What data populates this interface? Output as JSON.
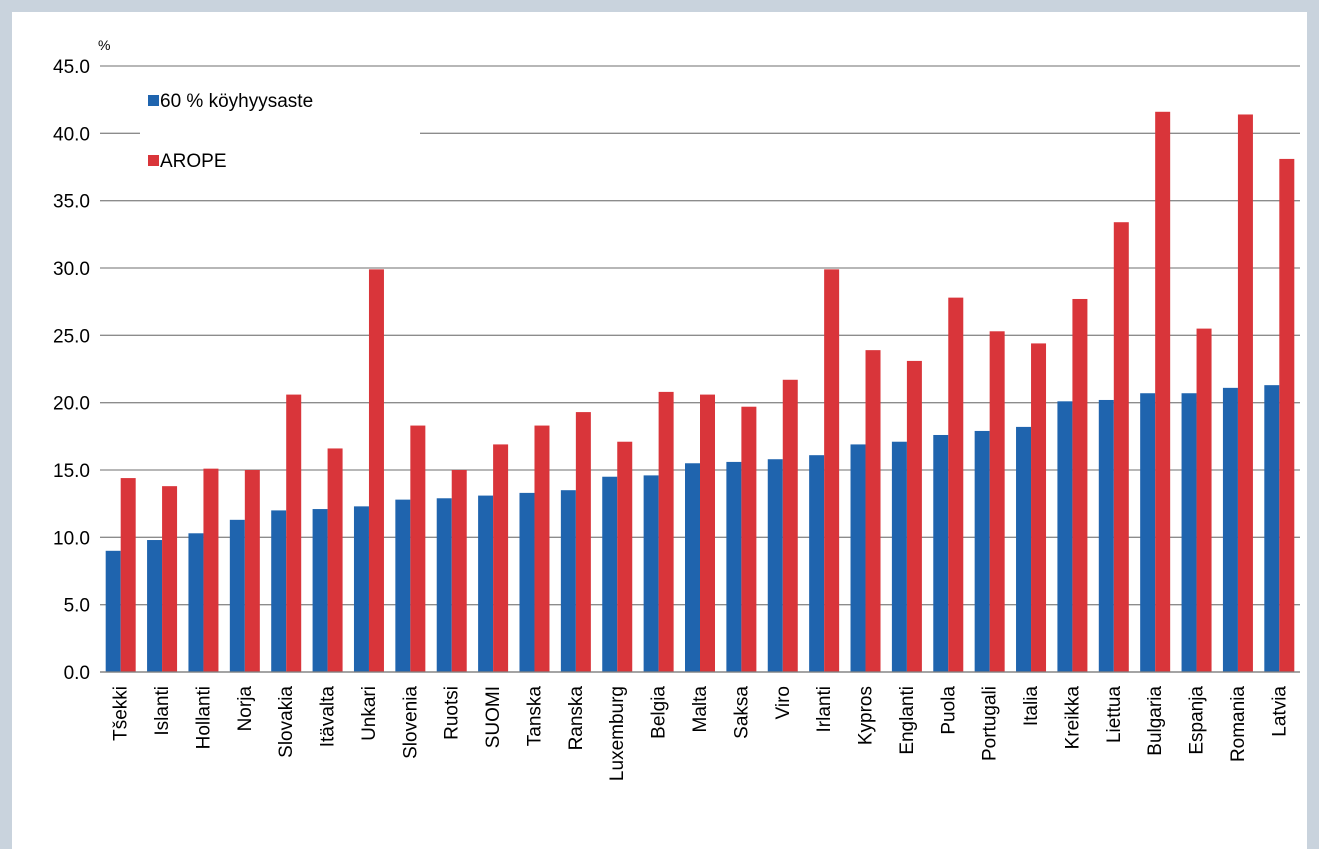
{
  "chart_data": {
    "type": "bar",
    "y_unit_label": "%",
    "categories": [
      "Tšekki",
      "Islanti",
      "Hollanti",
      "Norja",
      "Slovakia",
      "Itävalta",
      "Unkari",
      "Slovenia",
      "Ruotsi",
      "SUOMI",
      "Tanska",
      "Ranska",
      "Luxemburg",
      "Belgia",
      "Malta",
      "Saksa",
      "Viro",
      "Irlanti",
      "Kypros",
      "Englanti",
      "Puola",
      "Portugali",
      "Italia",
      "Kreikka",
      "Liettua",
      "Bulgaria",
      "Espanja",
      "Romania",
      "Latvia"
    ],
    "series": [
      {
        "name": "60 % köyhyysaste",
        "color": "#1f64ae",
        "values": [
          9.0,
          9.8,
          10.3,
          11.3,
          12.0,
          12.1,
          12.3,
          12.8,
          12.9,
          13.1,
          13.3,
          13.5,
          14.5,
          14.6,
          15.5,
          15.6,
          15.8,
          16.1,
          16.9,
          17.1,
          17.6,
          17.9,
          18.2,
          20.1,
          20.2,
          20.7,
          20.7,
          21.1,
          21.3
        ]
      },
      {
        "name": "AROPE",
        "color": "#d9353a",
        "values": [
          14.4,
          13.8,
          15.1,
          15.0,
          20.6,
          16.6,
          29.9,
          18.3,
          15.0,
          16.9,
          18.3,
          19.3,
          17.1,
          20.8,
          20.6,
          19.7,
          21.7,
          29.9,
          23.9,
          23.1,
          27.8,
          25.3,
          24.4,
          27.7,
          33.4,
          41.6,
          25.5,
          41.4,
          38.1
        ]
      }
    ],
    "ylim": [
      0,
      45
    ],
    "yticks": [
      {
        "value": 0,
        "label": "0.0"
      },
      {
        "value": 5,
        "label": "5.0"
      },
      {
        "value": 10,
        "label": "10.0"
      },
      {
        "value": 15,
        "label": "15.0"
      },
      {
        "value": 20,
        "label": "20.0"
      },
      {
        "value": 25,
        "label": "25.0"
      },
      {
        "value": 30,
        "label": "30.0"
      },
      {
        "value": 35,
        "label": "35.0"
      },
      {
        "value": 40,
        "label": "40.0"
      },
      {
        "value": 45,
        "label": "45.0"
      }
    ],
    "grid": true,
    "legend": "upper left"
  }
}
